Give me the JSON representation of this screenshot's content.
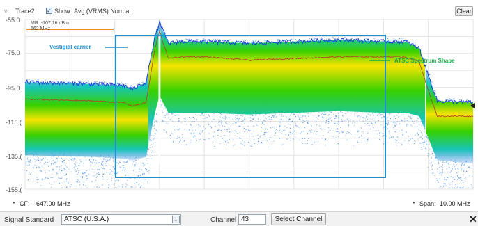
{
  "trace_bar": {
    "trace_label": "Trace2",
    "show_label": "Show",
    "show_checked": true,
    "detection_label": "Avg (VRMS) Normal",
    "clear_label": "Clear",
    "collapse_icon": "triangle-down-icon",
    "check_icon": "check-icon"
  },
  "chart_data": {
    "type": "heatmap",
    "y_tick_labels": [
      "-55.0",
      "-75.0",
      "-95.0",
      "-115.(",
      "-135.(",
      "-155.("
    ],
    "ylim": [
      -155,
      -55
    ],
    "x_range_mhz": [
      642,
      652
    ],
    "grid": true,
    "center_freq_mhz": 647,
    "span_mhz": 10,
    "marker": {
      "readout": "MR: -107.16 dBm",
      "frequency": "662 MHz"
    },
    "annotations": [
      "Vestigial carrier",
      "ATSC Spectrum Shape"
    ],
    "trace_profile": {
      "x_mhz": [
        642.0,
        643.5,
        644.2,
        644.4,
        644.7,
        644.9,
        645.0,
        645.2,
        645.5,
        646.0,
        647.0,
        648.0,
        649.0,
        650.0,
        650.5,
        650.8,
        651.0,
        651.2,
        652.0
      ],
      "avg_dbm": [
        -102,
        -103,
        -104,
        -106,
        -104,
        -72,
        -62,
        -78,
        -77,
        -77,
        -79,
        -78,
        -77,
        -77,
        -77,
        -80,
        -97,
        -112,
        -112
      ],
      "peak_dbm": [
        -92,
        -93,
        -94,
        -96,
        -92,
        -65,
        -57,
        -69,
        -68,
        -68,
        -69,
        -68,
        -67,
        -68,
        -68,
        -72,
        -88,
        -103,
        -104
      ],
      "floor_dbm": [
        -135,
        -136,
        -137,
        -138,
        -136,
        -110,
        -100,
        -110,
        -110,
        -110,
        -111,
        -110,
        -109,
        -110,
        -110,
        -112,
        -125,
        -138,
        -140
      ]
    },
    "colors": {
      "density_high": "#f7e400",
      "density_mid": "#36d000",
      "density_low": "#17c5b8",
      "scatter": "#2f7fe6",
      "peak_trace": "#1a3fd8",
      "avg_trace": "#b5372a",
      "box": "#1f8fd1",
      "vestigial_label": "#1f8fd1",
      "shape_label": "#1aa84a",
      "marker_bar": "#f08a1f"
    }
  },
  "bottom_row": {
    "cf_label": "CF:",
    "cf_value": "647.00 MHz",
    "span_label": "Span:",
    "span_value": "10.00 MHz",
    "cf_icon": "dot-icon",
    "span_icon": "dot-icon"
  },
  "footer": {
    "signal_standard_label": "Signal Standard",
    "signal_standard_value": "ATSC (U.S.A.)",
    "channel_label": "Channel",
    "channel_value": "43",
    "select_channel_label": "Select Channel",
    "dropdown_icon": "chevron-down-icon",
    "close_icon": "close-icon"
  }
}
